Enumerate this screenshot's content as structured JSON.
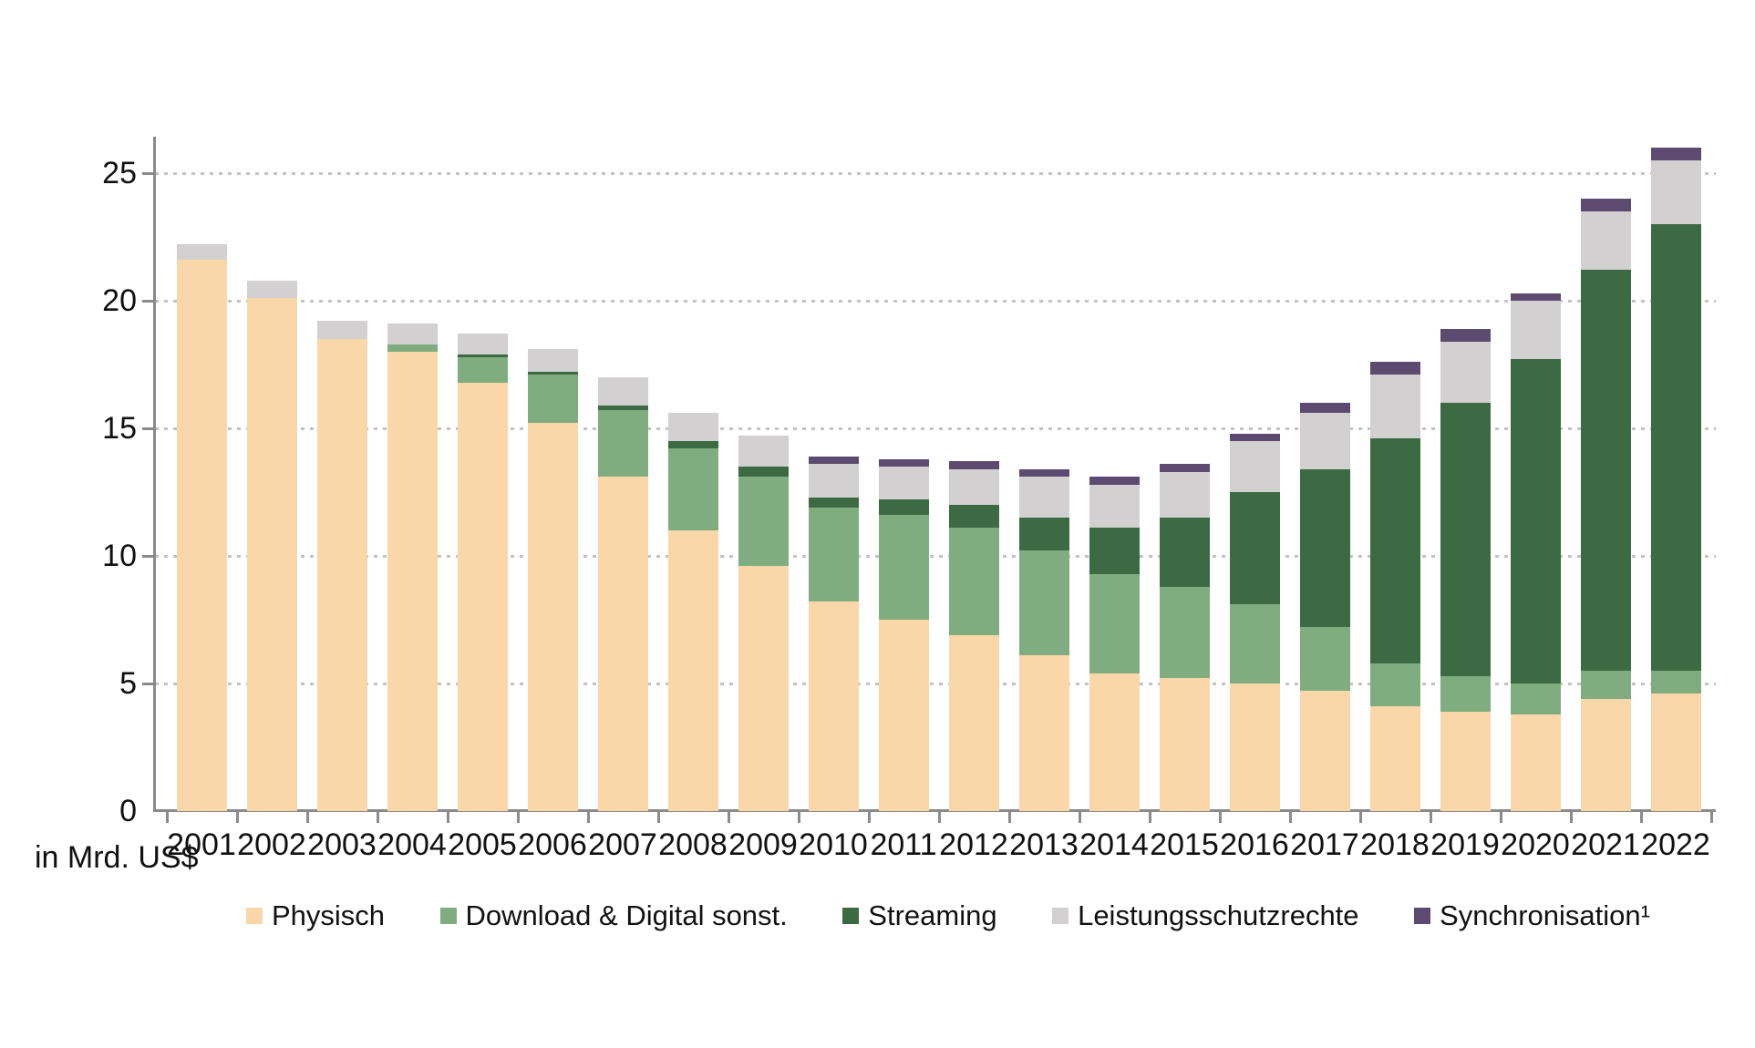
{
  "axis_unit_label": "in Mrd. US$",
  "colors": {
    "physisch": "#FAD7A8",
    "download": "#7FAD7F",
    "streaming": "#3B6A43",
    "lsr": "#D2D0D0",
    "sync": "#5D4A70",
    "axis": "#8b8b8b",
    "gridline": "#c4c3c2",
    "text": "#111111",
    "background": "#ffffff"
  },
  "chart_data": {
    "type": "bar",
    "stacked": true,
    "title": "",
    "ylabel": "in Mrd. US$",
    "xlabel": "",
    "ylim": [
      0,
      26.5
    ],
    "yticks": [
      0,
      5,
      10,
      15,
      20,
      25
    ],
    "grid": "horizontal-dotted",
    "legend_position": "bottom",
    "categories": [
      2001,
      2002,
      2003,
      2004,
      2005,
      2006,
      2007,
      2008,
      2009,
      2010,
      2011,
      2012,
      2013,
      2014,
      2015,
      2016,
      2017,
      2018,
      2019,
      2020,
      2021,
      2022
    ],
    "series": [
      {
        "name": "Physisch",
        "color_key": "physisch",
        "values": [
          21.6,
          20.1,
          18.5,
          18.0,
          16.8,
          15.2,
          13.1,
          11.0,
          9.6,
          8.2,
          7.5,
          6.9,
          6.1,
          5.4,
          5.2,
          5.0,
          4.7,
          4.1,
          3.9,
          3.8,
          4.4,
          4.6
        ]
      },
      {
        "name": "Download & Digital sonst.",
        "color_key": "download",
        "values": [
          0,
          0,
          0,
          0.3,
          1.0,
          1.9,
          2.6,
          3.2,
          3.5,
          3.7,
          4.1,
          4.2,
          4.1,
          3.9,
          3.6,
          3.1,
          2.5,
          1.7,
          1.4,
          1.2,
          1.1,
          0.9
        ]
      },
      {
        "name": "Streaming",
        "color_key": "streaming",
        "values": [
          0,
          0,
          0,
          0,
          0.1,
          0.1,
          0.2,
          0.3,
          0.4,
          0.4,
          0.6,
          0.9,
          1.3,
          1.8,
          2.7,
          4.4,
          6.2,
          8.8,
          10.7,
          12.7,
          15.7,
          17.5
        ]
      },
      {
        "name": "Leistungsschutzrechte",
        "color_key": "lsr",
        "values": [
          0.6,
          0.7,
          0.7,
          0.8,
          0.8,
          0.9,
          1.1,
          1.1,
          1.2,
          1.3,
          1.3,
          1.4,
          1.6,
          1.7,
          1.8,
          2.0,
          2.2,
          2.5,
          2.4,
          2.3,
          2.3,
          2.5
        ]
      },
      {
        "name": "Synchronisation¹",
        "color_key": "sync",
        "values": [
          0,
          0,
          0,
          0,
          0,
          0,
          0,
          0,
          0,
          0.3,
          0.3,
          0.3,
          0.3,
          0.3,
          0.3,
          0.3,
          0.4,
          0.5,
          0.5,
          0.3,
          0.5,
          0.5
        ]
      }
    ],
    "totals": [
      22.2,
      20.8,
      19.2,
      19.1,
      18.7,
      18.1,
      17.0,
      15.6,
      14.7,
      13.9,
      13.8,
      13.7,
      13.4,
      13.1,
      13.6,
      14.8,
      16.0,
      17.6,
      18.9,
      20.3,
      24.0,
      26.0
    ]
  },
  "legend": {
    "items": [
      {
        "label": "Physisch",
        "color_key": "physisch"
      },
      {
        "label": "Download & Digital sonst.",
        "color_key": "download"
      },
      {
        "label": "Streaming",
        "color_key": "streaming"
      },
      {
        "label": "Leistungsschutzrechte",
        "color_key": "lsr"
      },
      {
        "label": "Synchronisation¹",
        "color_key": "sync"
      }
    ]
  }
}
